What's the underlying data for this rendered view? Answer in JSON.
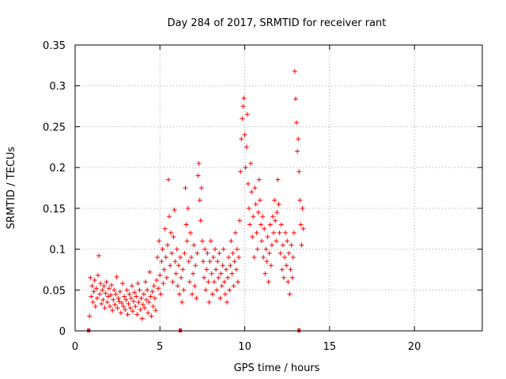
{
  "chart_data": {
    "type": "scatter",
    "title": "Day 284 of 2017, SRMTID for receiver rant",
    "xlabel": "GPS time / hours",
    "ylabel": "SRMTID / TECUs",
    "xlim": [
      0,
      24
    ],
    "ylim": [
      0,
      0.35
    ],
    "xticks": [
      0,
      5,
      10,
      15,
      20
    ],
    "xtick_labels": [
      "0",
      "5",
      "10",
      "15",
      "20"
    ],
    "yticks": [
      0,
      0.05,
      0.1,
      0.15,
      0.2,
      0.25,
      0.3,
      0.35
    ],
    "ytick_labels": [
      "0",
      "0.05",
      "0.1",
      "0.15",
      "0.2",
      "0.25",
      "0.3",
      "0.35"
    ],
    "grid": true,
    "marker": "+",
    "color": "#ff0000",
    "axis_markers": [
      0.8,
      6.2,
      13.2
    ],
    "series": [
      {
        "name": "SRMTID",
        "points": [
          [
            0.85,
            0.018
          ],
          [
            0.9,
            0.065
          ],
          [
            0.95,
            0.042
          ],
          [
            1.0,
            0.055
          ],
          [
            1.05,
            0.035
          ],
          [
            1.1,
            0.048
          ],
          [
            1.15,
            0.062
          ],
          [
            1.2,
            0.03
          ],
          [
            1.25,
            0.052
          ],
          [
            1.3,
            0.04
          ],
          [
            1.35,
            0.068
          ],
          [
            1.4,
            0.092
          ],
          [
            1.45,
            0.045
          ],
          [
            1.5,
            0.058
          ],
          [
            1.55,
            0.033
          ],
          [
            1.6,
            0.05
          ],
          [
            1.65,
            0.038
          ],
          [
            1.7,
            0.055
          ],
          [
            1.75,
            0.028
          ],
          [
            1.8,
            0.046
          ],
          [
            1.85,
            0.06
          ],
          [
            1.9,
            0.035
          ],
          [
            1.95,
            0.042
          ],
          [
            2.0,
            0.052
          ],
          [
            2.05,
            0.03
          ],
          [
            2.1,
            0.044
          ],
          [
            2.15,
            0.056
          ],
          [
            2.2,
            0.025
          ],
          [
            2.25,
            0.038
          ],
          [
            2.3,
            0.05
          ],
          [
            2.35,
            0.032
          ],
          [
            2.4,
            0.045
          ],
          [
            2.45,
            0.066
          ],
          [
            2.5,
            0.028
          ],
          [
            2.55,
            0.04
          ],
          [
            2.6,
            0.036
          ],
          [
            2.65,
            0.048
          ],
          [
            2.7,
            0.022
          ],
          [
            2.75,
            0.034
          ],
          [
            2.8,
            0.058
          ],
          [
            2.85,
            0.03
          ],
          [
            2.9,
            0.042
          ],
          [
            2.95,
            0.026
          ],
          [
            3.0,
            0.038
          ],
          [
            3.05,
            0.05
          ],
          [
            3.1,
            0.02
          ],
          [
            3.15,
            0.033
          ],
          [
            3.2,
            0.045
          ],
          [
            3.25,
            0.028
          ],
          [
            3.3,
            0.04
          ],
          [
            3.35,
            0.055
          ],
          [
            3.4,
            0.024
          ],
          [
            3.45,
            0.036
          ],
          [
            3.5,
            0.047
          ],
          [
            3.55,
            0.03
          ],
          [
            3.6,
            0.042
          ],
          [
            3.65,
            0.02
          ],
          [
            3.7,
            0.058
          ],
          [
            3.75,
            0.035
          ],
          [
            3.8,
            0.05
          ],
          [
            3.85,
            0.026
          ],
          [
            3.9,
            0.04
          ],
          [
            3.95,
            0.015
          ],
          [
            4.0,
            0.032
          ],
          [
            4.05,
            0.045
          ],
          [
            4.1,
            0.028
          ],
          [
            4.15,
            0.06
          ],
          [
            4.2,
            0.038
          ],
          [
            4.25,
            0.05
          ],
          [
            4.3,
            0.022
          ],
          [
            4.35,
            0.035
          ],
          [
            4.4,
            0.072
          ],
          [
            4.45,
            0.042
          ],
          [
            4.5,
            0.018
          ],
          [
            4.55,
            0.048
          ],
          [
            4.6,
            0.03
          ],
          [
            4.65,
            0.055
          ],
          [
            4.7,
            0.04
          ],
          [
            4.75,
            0.025
          ],
          [
            4.8,
            0.062
          ],
          [
            4.85,
            0.09
          ],
          [
            4.9,
            0.052
          ],
          [
            4.95,
            0.11
          ],
          [
            5.0,
            0.068
          ],
          [
            5.05,
            0.045
          ],
          [
            5.1,
            0.085
          ],
          [
            5.15,
            0.1
          ],
          [
            5.2,
            0.058
          ],
          [
            5.25,
            0.075
          ],
          [
            5.3,
            0.125
          ],
          [
            5.35,
            0.09
          ],
          [
            5.4,
            0.065
          ],
          [
            5.45,
            0.105
          ],
          [
            5.5,
            0.185
          ],
          [
            5.55,
            0.14
          ],
          [
            5.6,
            0.08
          ],
          [
            5.65,
            0.12
          ],
          [
            5.7,
            0.095
          ],
          [
            5.75,
            0.06
          ],
          [
            5.8,
            0.115
          ],
          [
            5.85,
            0.148
          ],
          [
            5.9,
            0.085
          ],
          [
            5.95,
            0.07
          ],
          [
            6.0,
            0.1
          ],
          [
            6.05,
            0.055
          ],
          [
            6.1,
            0.08
          ],
          [
            6.15,
            0.045
          ],
          [
            6.2,
            0.09
          ],
          [
            6.25,
            0.065
          ],
          [
            6.3,
            0.035
          ],
          [
            6.35,
            0.075
          ],
          [
            6.4,
            0.05
          ],
          [
            6.45,
            0.095
          ],
          [
            6.5,
            0.175
          ],
          [
            6.55,
            0.13
          ],
          [
            6.6,
            0.11
          ],
          [
            6.65,
            0.15
          ],
          [
            6.7,
            0.085
          ],
          [
            6.75,
            0.06
          ],
          [
            6.8,
            0.12
          ],
          [
            6.85,
            0.09
          ],
          [
            6.9,
            0.045
          ],
          [
            6.95,
            0.07
          ],
          [
            7.0,
            0.105
          ],
          [
            7.05,
            0.055
          ],
          [
            7.1,
            0.08
          ],
          [
            7.15,
            0.04
          ],
          [
            7.2,
            0.095
          ],
          [
            7.25,
            0.19
          ],
          [
            7.3,
            0.205
          ],
          [
            7.35,
            0.16
          ],
          [
            7.4,
            0.135
          ],
          [
            7.45,
            0.175
          ],
          [
            7.5,
            0.11
          ],
          [
            7.55,
            0.085
          ],
          [
            7.6,
            0.065
          ],
          [
            7.65,
            0.1
          ],
          [
            7.7,
            0.05
          ],
          [
            7.75,
            0.075
          ],
          [
            7.8,
            0.095
          ],
          [
            7.85,
            0.06
          ],
          [
            7.9,
            0.035
          ],
          [
            7.95,
            0.085
          ],
          [
            8.0,
            0.11
          ],
          [
            8.05,
            0.07
          ],
          [
            8.1,
            0.045
          ],
          [
            8.15,
            0.09
          ],
          [
            8.2,
            0.06
          ],
          [
            8.25,
            0.1
          ],
          [
            8.3,
            0.075
          ],
          [
            8.35,
            0.05
          ],
          [
            8.4,
            0.085
          ],
          [
            8.45,
            0.065
          ],
          [
            8.5,
            0.095
          ],
          [
            8.55,
            0.04
          ],
          [
            8.6,
            0.07
          ],
          [
            8.65,
            0.055
          ],
          [
            8.7,
            0.08
          ],
          [
            8.75,
            0.1
          ],
          [
            8.8,
            0.06
          ],
          [
            8.85,
            0.045
          ],
          [
            8.9,
            0.075
          ],
          [
            8.95,
            0.035
          ],
          [
            9.0,
            0.065
          ],
          [
            9.05,
            0.09
          ],
          [
            9.1,
            0.05
          ],
          [
            9.15,
            0.08
          ],
          [
            9.2,
            0.11
          ],
          [
            9.25,
            0.07
          ],
          [
            9.3,
            0.095
          ],
          [
            9.35,
            0.055
          ],
          [
            9.4,
            0.085
          ],
          [
            9.45,
            0.12
          ],
          [
            9.5,
            0.075
          ],
          [
            9.55,
            0.1
          ],
          [
            9.6,
            0.06
          ],
          [
            9.65,
            0.09
          ],
          [
            9.7,
            0.135
          ],
          [
            9.75,
            0.195
          ],
          [
            9.8,
            0.235
          ],
          [
            9.85,
            0.26
          ],
          [
            9.9,
            0.275
          ],
          [
            9.95,
            0.285
          ],
          [
            10.0,
            0.24
          ],
          [
            10.05,
            0.2
          ],
          [
            10.1,
            0.225
          ],
          [
            10.15,
            0.265
          ],
          [
            10.2,
            0.18
          ],
          [
            10.25,
            0.15
          ],
          [
            10.3,
            0.13
          ],
          [
            10.35,
            0.205
          ],
          [
            10.4,
            0.17
          ],
          [
            10.45,
            0.115
          ],
          [
            10.5,
            0.14
          ],
          [
            10.55,
            0.09
          ],
          [
            10.6,
            0.175
          ],
          [
            10.65,
            0.155
          ],
          [
            10.7,
            0.12
          ],
          [
            10.75,
            0.1
          ],
          [
            10.8,
            0.145
          ],
          [
            10.85,
            0.185
          ],
          [
            10.9,
            0.16
          ],
          [
            10.95,
            0.13
          ],
          [
            11.0,
            0.11
          ],
          [
            11.05,
            0.14
          ],
          [
            11.1,
            0.09
          ],
          [
            11.15,
            0.125
          ],
          [
            11.2,
            0.07
          ],
          [
            11.25,
            0.1
          ],
          [
            11.3,
            0.085
          ],
          [
            11.35,
            0.115
          ],
          [
            11.4,
            0.06
          ],
          [
            11.45,
            0.095
          ],
          [
            11.5,
            0.13
          ],
          [
            11.55,
            0.08
          ],
          [
            11.6,
            0.105
          ],
          [
            11.65,
            0.14
          ],
          [
            11.7,
            0.12
          ],
          [
            11.75,
            0.16
          ],
          [
            11.8,
            0.135
          ],
          [
            11.85,
            0.11
          ],
          [
            11.9,
            0.145
          ],
          [
            11.95,
            0.185
          ],
          [
            12.0,
            0.155
          ],
          [
            12.05,
            0.12
          ],
          [
            12.1,
            0.095
          ],
          [
            12.15,
            0.13
          ],
          [
            12.2,
            0.075
          ],
          [
            12.25,
            0.105
          ],
          [
            12.3,
            0.065
          ],
          [
            12.35,
            0.09
          ],
          [
            12.4,
            0.12
          ],
          [
            12.45,
            0.08
          ],
          [
            12.5,
            0.11
          ],
          [
            12.55,
            0.06
          ],
          [
            12.6,
            0.095
          ],
          [
            12.65,
            0.045
          ],
          [
            12.7,
            0.075
          ],
          [
            12.75,
            0.105
          ],
          [
            12.8,
            0.065
          ],
          [
            12.85,
            0.09
          ],
          [
            12.9,
            0.12
          ],
          [
            12.95,
            0.318
          ],
          [
            13.0,
            0.284
          ],
          [
            13.05,
            0.255
          ],
          [
            13.1,
            0.22
          ],
          [
            13.15,
            0.235
          ],
          [
            13.2,
            0.195
          ],
          [
            13.25,
            0.16
          ],
          [
            13.3,
            0.13
          ],
          [
            13.35,
            0.105
          ],
          [
            13.4,
            0.15
          ],
          [
            13.45,
            0.125
          ]
        ]
      }
    ]
  }
}
